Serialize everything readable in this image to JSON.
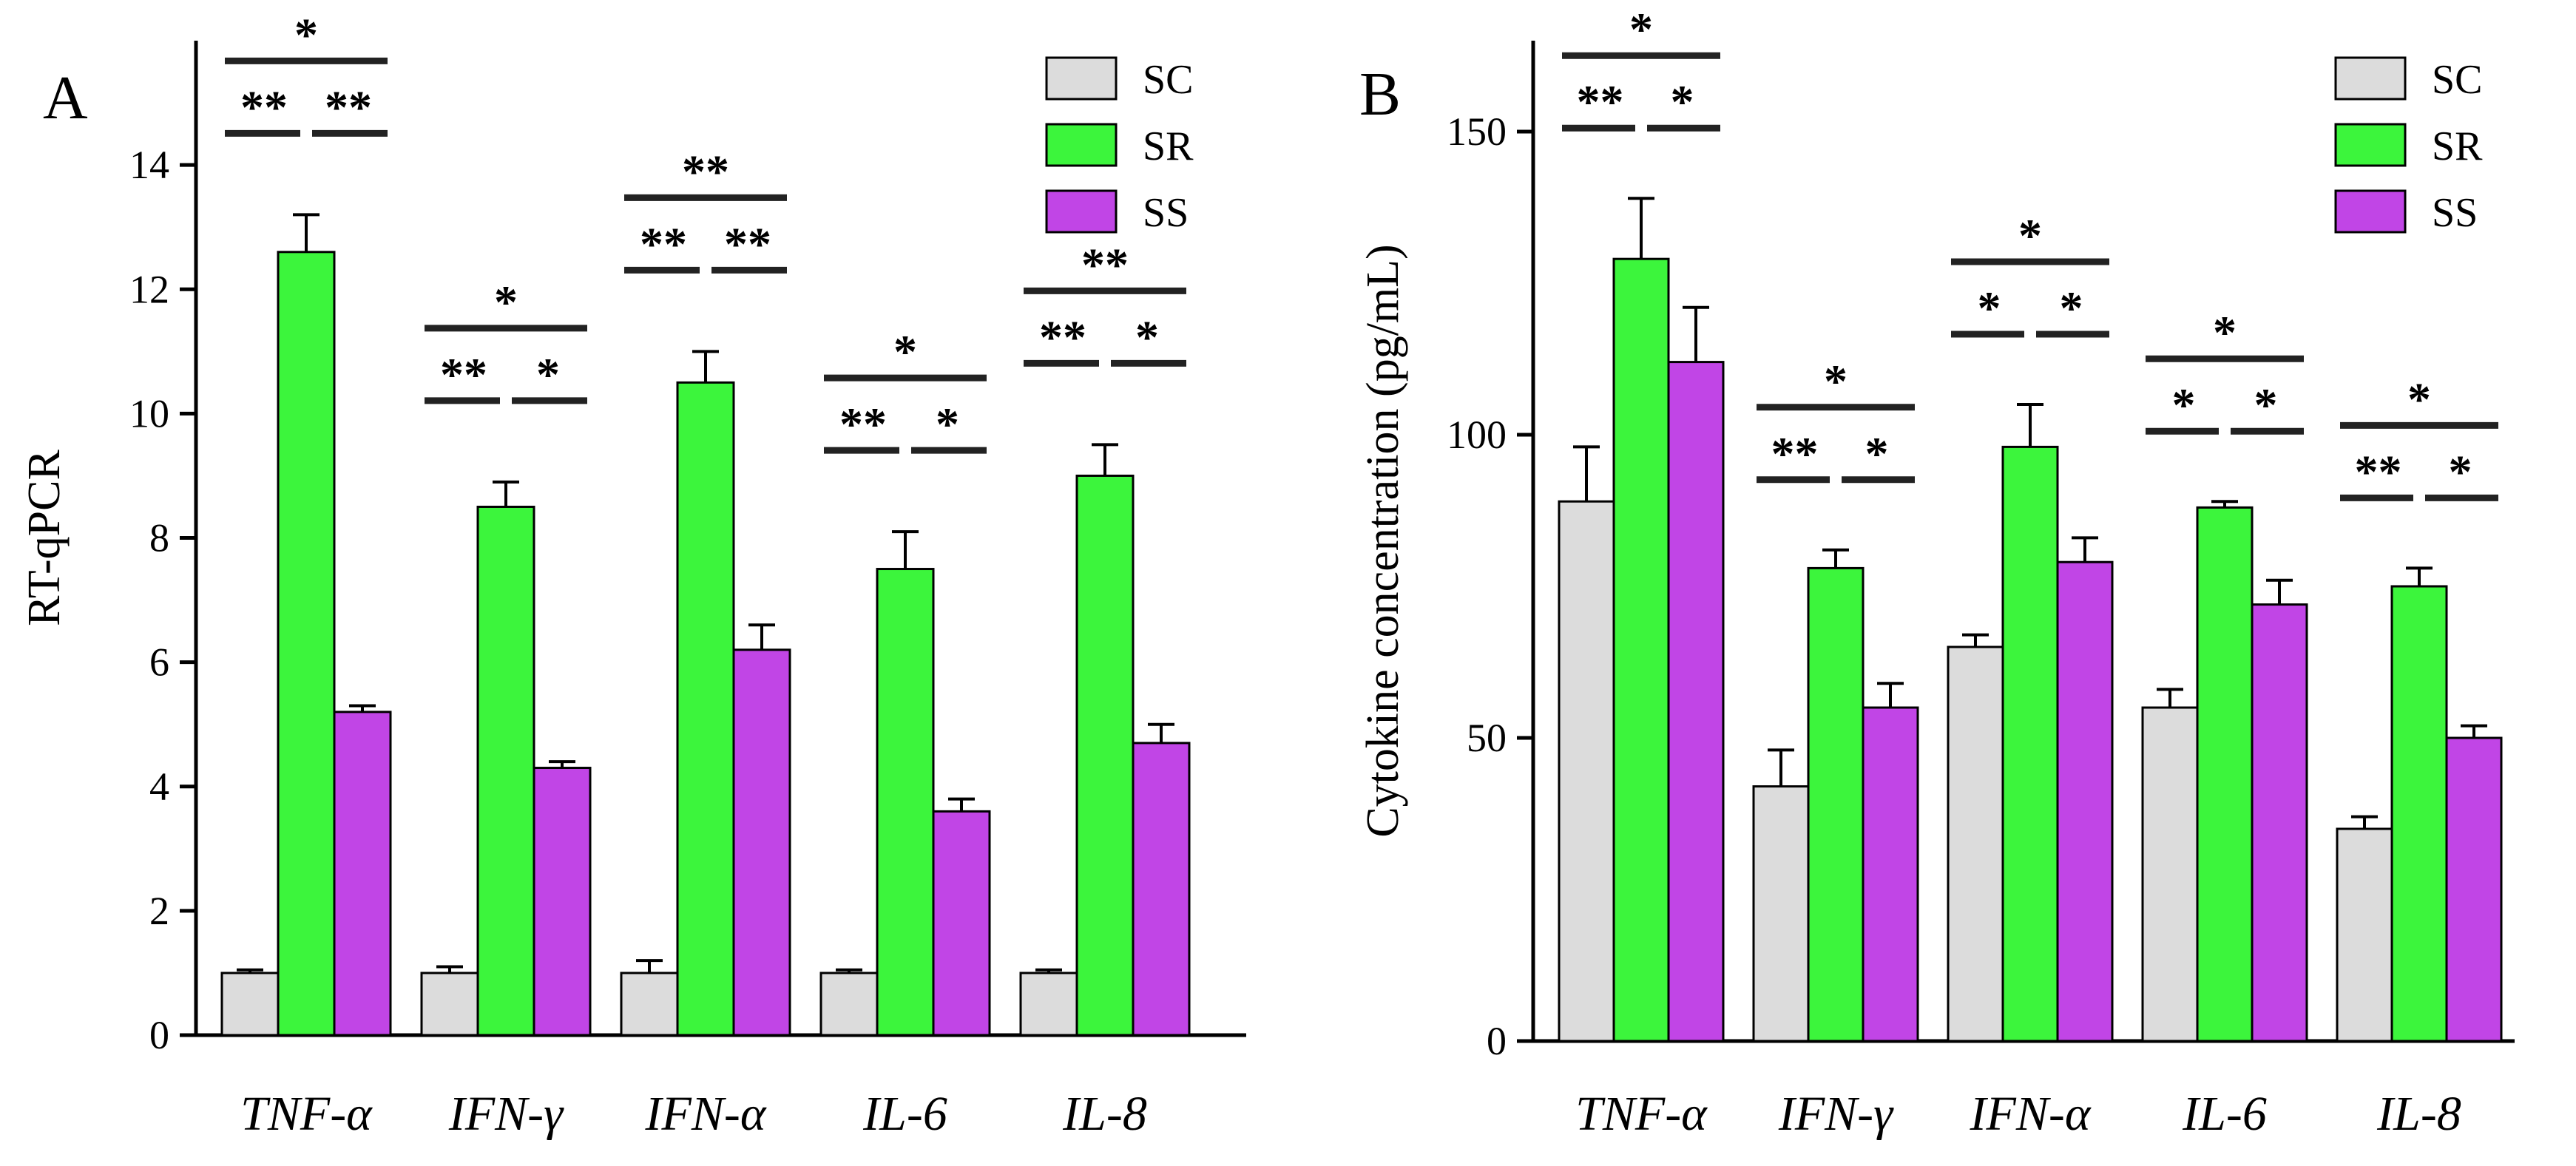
{
  "chart_data": [
    {
      "type": "bar",
      "panel": "A",
      "ylabel": "RT-qPCR",
      "xlabel": "",
      "ylim": [
        0,
        16
      ],
      "yticks": [
        0,
        2,
        4,
        6,
        8,
        10,
        12,
        14
      ],
      "categories": [
        "TNF-α",
        "IFN-γ",
        "IFN-α",
        "IL-6",
        "IL-8"
      ],
      "series": [
        {
          "name": "SC",
          "color": "#dcdcdc",
          "values": [
            1.0,
            1.0,
            1.0,
            1.0,
            1.0
          ],
          "errors": [
            0.05,
            0.1,
            0.2,
            0.05,
            0.05
          ]
        },
        {
          "name": "SR",
          "color": "#3cf53c",
          "values": [
            12.6,
            8.5,
            10.5,
            7.5,
            9.0
          ],
          "errors": [
            0.6,
            0.4,
            0.5,
            0.6,
            0.5
          ]
        },
        {
          "name": "SS",
          "color": "#c145e6",
          "values": [
            5.2,
            4.3,
            6.2,
            3.6,
            4.7
          ],
          "errors": [
            0.1,
            0.1,
            0.4,
            0.2,
            0.3
          ]
        }
      ],
      "significance": [
        {
          "pair": "SC-SR",
          "labels": [
            "**",
            "**",
            "**",
            "**",
            "**"
          ]
        },
        {
          "pair": "SR-SS",
          "labels": [
            "**",
            "*",
            "**",
            "*",
            "*"
          ]
        },
        {
          "pair": "SC-SS",
          "labels": [
            "*",
            "*",
            "**",
            "*",
            "**"
          ]
        }
      ],
      "legend": "top-right"
    },
    {
      "type": "bar",
      "panel": "B",
      "ylabel": "Cytokine  concentration  (pg/mL)",
      "xlabel": "",
      "ylim": [
        0,
        165
      ],
      "yticks": [
        0,
        50,
        100,
        150
      ],
      "categories": [
        "TNF-α",
        "IFN-γ",
        "IFN-α",
        "IL-6",
        "IL-8"
      ],
      "series": [
        {
          "name": "SC",
          "color": "#dcdcdc",
          "values": [
            89,
            42,
            65,
            55,
            35
          ],
          "errors": [
            9,
            6,
            2,
            3,
            2
          ]
        },
        {
          "name": "SR",
          "color": "#3cf53c",
          "values": [
            129,
            78,
            98,
            88,
            75
          ],
          "errors": [
            10,
            3,
            7,
            1,
            3
          ]
        },
        {
          "name": "SS",
          "color": "#c145e6",
          "values": [
            112,
            55,
            79,
            72,
            50
          ],
          "errors": [
            9,
            4,
            4,
            4,
            2
          ]
        }
      ],
      "significance": [
        {
          "pair": "SC-SR",
          "labels": [
            "**",
            "**",
            "*",
            "*",
            "**"
          ]
        },
        {
          "pair": "SR-SS",
          "labels": [
            "*",
            "*",
            "*",
            "*",
            "*"
          ]
        },
        {
          "pair": "SC-SS",
          "labels": [
            "*",
            "*",
            "*",
            "*",
            "*"
          ]
        }
      ],
      "legend": "top-right"
    }
  ]
}
